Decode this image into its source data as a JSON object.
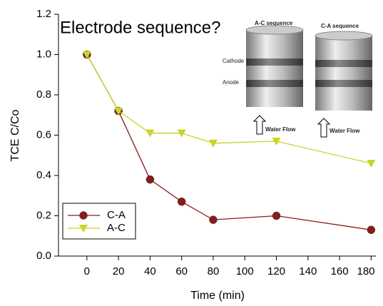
{
  "chart_data": {
    "type": "line",
    "title": "Electrode sequence?",
    "x_label": "Time (min)",
    "y_label": "TCE C/Co",
    "x": [
      0,
      20,
      40,
      60,
      80,
      120,
      180
    ],
    "series": [
      {
        "name": "C-A",
        "color": "#8b1a1a",
        "marker": "circle",
        "values": [
          1.0,
          0.72,
          0.38,
          0.27,
          0.18,
          0.2,
          0.13
        ]
      },
      {
        "name": "A-C",
        "color": "#c8d42a",
        "marker": "triangle-down",
        "values": [
          1.0,
          0.72,
          0.61,
          0.61,
          0.56,
          0.57,
          0.46
        ]
      }
    ],
    "xlim": [
      -18,
      183
    ],
    "xticks": [
      0,
      20,
      40,
      60,
      80,
      100,
      120,
      140,
      160,
      180
    ],
    "ylim": [
      0,
      1.2
    ],
    "yticks": [
      {
        "value": 0,
        "label": "0.0"
      },
      0.2,
      0.4,
      0.6,
      0.8,
      {
        "value": 1,
        "label": "1.0"
      },
      1.2
    ],
    "legend": "lower left"
  },
  "inset": {
    "left_title": "A-C sequence",
    "right_title": "C-A sequence",
    "cathode": "Cathode",
    "anode": "Anode",
    "left_flow": "Water Flow",
    "right_flow": "Water Flow"
  }
}
